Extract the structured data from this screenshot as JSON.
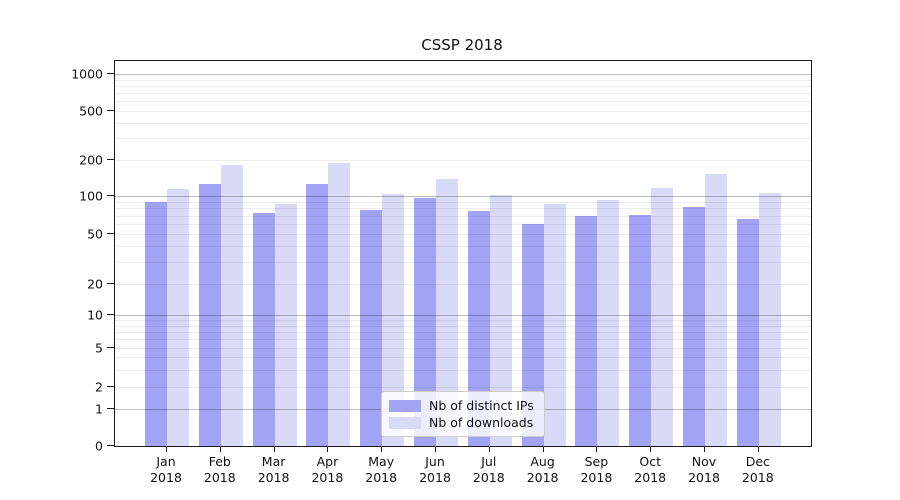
{
  "title": "CSSP 2018",
  "colors": {
    "distinct_ips": "#a3a3f5",
    "downloads": "#d9d9f8",
    "axis": "#1b1b1b"
  },
  "legend": {
    "items": [
      {
        "label": "Nb of distinct IPs",
        "series": "distinct_ips"
      },
      {
        "label": "Nb of downloads",
        "series": "downloads"
      }
    ]
  },
  "chart_data": {
    "type": "bar",
    "title": "CSSP 2018",
    "categories": [
      "Jan 2018",
      "Feb 2018",
      "Mar 2018",
      "Apr 2018",
      "May 2018",
      "Jun 2018",
      "Jul 2018",
      "Aug 2018",
      "Sep 2018",
      "Oct 2018",
      "Nov 2018",
      "Dec 2018"
    ],
    "series": [
      {
        "name": "Nb of distinct IPs",
        "color": "#a3a3f5",
        "values": [
          90,
          126,
          74,
          126,
          77,
          97,
          76,
          60,
          69,
          71,
          82,
          66
        ]
      },
      {
        "name": "Nb of downloads",
        "color": "#d9d9f8",
        "values": [
          115,
          182,
          87,
          190,
          104,
          138,
          102,
          86,
          93,
          116,
          154,
          106
        ]
      }
    ],
    "xlabel": "",
    "ylabel": "",
    "yscale": "symlog",
    "y_ticks": [
      0,
      1,
      2,
      5,
      10,
      20,
      50,
      100,
      200,
      500,
      1000
    ],
    "ylim": [
      0,
      1300
    ],
    "grid": "horizontal major and minor gridlines, drawn over bars",
    "legend_position": "lower center"
  }
}
